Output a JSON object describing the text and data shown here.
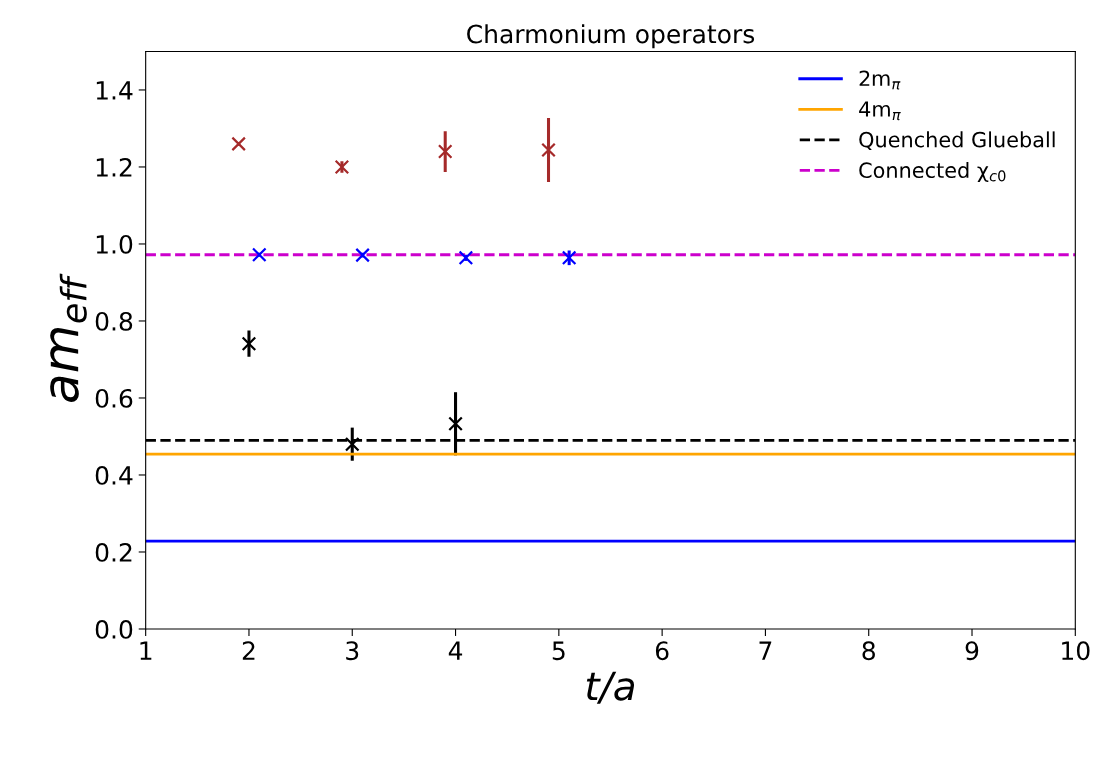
{
  "chart_data": {
    "type": "scatter",
    "title": "Charmonium operators",
    "xlabel": "t/a",
    "ylabel": "am$_{eff}$",
    "xlim": [
      1,
      10
    ],
    "xticks": [
      1,
      2,
      3,
      4,
      5,
      6,
      7,
      8,
      9,
      10
    ],
    "ylim": [
      0,
      1.5
    ],
    "yticks": [
      {
        "value": 0,
        "label": "0.0"
      },
      0.2,
      0.4,
      0.6,
      0.8,
      {
        "value": 1,
        "label": "1.0"
      },
      1.2,
      1.4
    ],
    "marker": "cross",
    "grid": false,
    "legend": "top right",
    "series": [
      {
        "color": "#a52a2a",
        "x": [
          1.9,
          2.9,
          3.9,
          4.9
        ],
        "values": [
          1.26,
          1.2,
          1.24,
          1.244
        ],
        "errors": [
          0.005,
          0.015,
          0.053,
          0.083
        ]
      },
      {
        "color": "#0000ff",
        "x": [
          2.1,
          3.1,
          4.1,
          5.1
        ],
        "values": [
          0.972,
          0.971,
          0.964,
          0.964
        ],
        "errors": [
          0.005,
          0.006,
          0.008,
          0.019
        ]
      },
      {
        "color": "#000000",
        "x": [
          2,
          3,
          4
        ],
        "values": [
          0.741,
          0.48,
          0.533
        ],
        "errors": [
          0.034,
          0.043,
          0.082
        ]
      }
    ],
    "ref_lines": [
      {
        "axis": "y",
        "value": 0.228,
        "label": "2m$_{π}$",
        "color": "#0000ff",
        "line_style": "solid"
      },
      {
        "axis": "y",
        "value": 0.454,
        "label": "4m$_{π}$",
        "color": "#ffa500",
        "line_style": "solid"
      },
      {
        "axis": "y",
        "value": 0.49,
        "label": "Quenched Glueball",
        "color": "#000000",
        "line_style": "dashed"
      },
      {
        "axis": "y",
        "value": 0.972,
        "label": "Connected χ$_{c0}$",
        "color": "#cc00cc",
        "line_style": "dashed"
      }
    ]
  }
}
